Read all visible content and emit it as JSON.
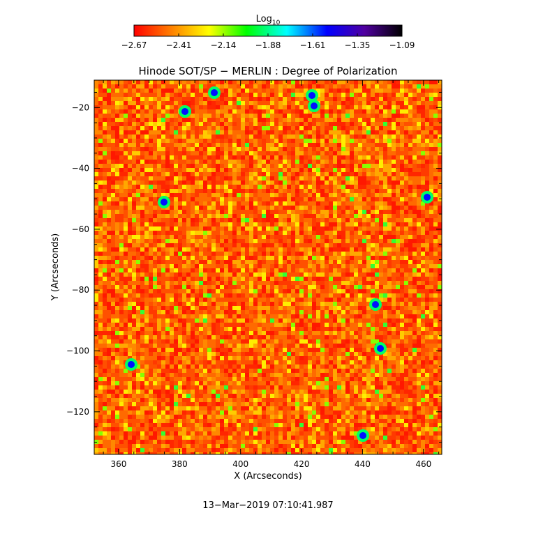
{
  "chart_data": {
    "type": "heatmap",
    "title": "Hinode SOT/SP − MERLIN : Degree of Polarization",
    "xlabel": "X (Arcseconds)",
    "ylabel": "Y (Arcseconds)",
    "xlim": [
      352,
      466
    ],
    "ylim": [
      -134,
      -11
    ],
    "xticks": [
      360,
      380,
      400,
      420,
      440,
      460
    ],
    "yticks": [
      -20,
      -40,
      -60,
      -80,
      -100,
      -120
    ],
    "colorbar": {
      "label_base": "Log",
      "label_sub": "10",
      "ticks": [
        "−2.67",
        "−2.41",
        "−2.14",
        "−1.88",
        "−1.61",
        "−1.35",
        "−1.09"
      ],
      "colors": [
        "#ff0000",
        "#ff8000",
        "#ffff00",
        "#00ff00",
        "#00ffff",
        "#0000ff",
        "#5000a0",
        "#000000"
      ]
    },
    "grid": false,
    "legend": "colorbar top"
  },
  "timestamp": "13−Mar−2019 07:10:41.987",
  "colors": {
    "background": "#ffffff",
    "low": "#ff2a00",
    "mid": "#ffd000",
    "high": "#0000ff"
  }
}
